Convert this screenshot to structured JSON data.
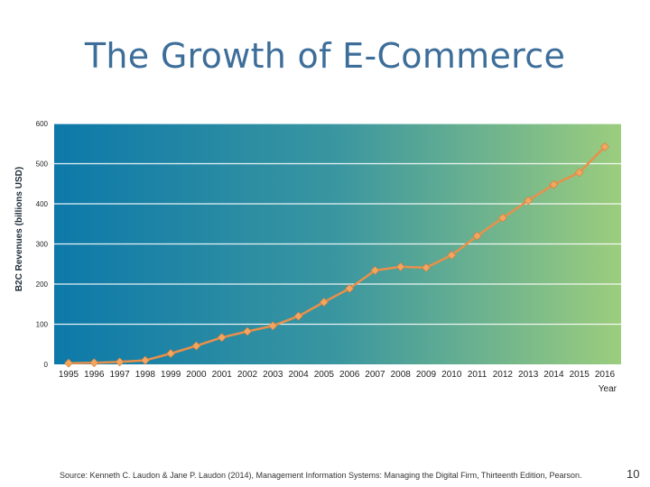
{
  "slide": {
    "title": "The Growth of E-Commerce",
    "source": "Source: Kenneth C. Laudon & Jane P. Laudon (2014), Management Information Systems: Managing the Digital Firm, Thirteenth Edition, Pearson.",
    "page_number": "10"
  },
  "chart_data": {
    "type": "line",
    "title": "",
    "xlabel": "Year",
    "ylabel": "B2C Revenues (billions USD)",
    "categories": [
      "1995",
      "1996",
      "1997",
      "1998",
      "1999",
      "2000",
      "2001",
      "2002",
      "2003",
      "2004",
      "2005",
      "2006",
      "2007",
      "2008",
      "2009",
      "2010",
      "2011",
      "2012",
      "2013",
      "2014",
      "2015",
      "2016"
    ],
    "series": [
      {
        "values": [
          3,
          4,
          6,
          10,
          27,
          46,
          67,
          82,
          96,
          120,
          155,
          189,
          234,
          243,
          241,
          272,
          320,
          365,
          408,
          448,
          478,
          542
        ]
      }
    ],
    "ylim": [
      0,
      600
    ],
    "yticks": [
      "0",
      "100",
      "200",
      "300",
      "400",
      "500",
      "600"
    ],
    "grid": true,
    "colors": {
      "bg_left": "#0d79a9",
      "bg_right": "#9ccd7e",
      "line": "#e9904a",
      "marker": "#f2a660",
      "gridline": "#ffffff"
    }
  }
}
